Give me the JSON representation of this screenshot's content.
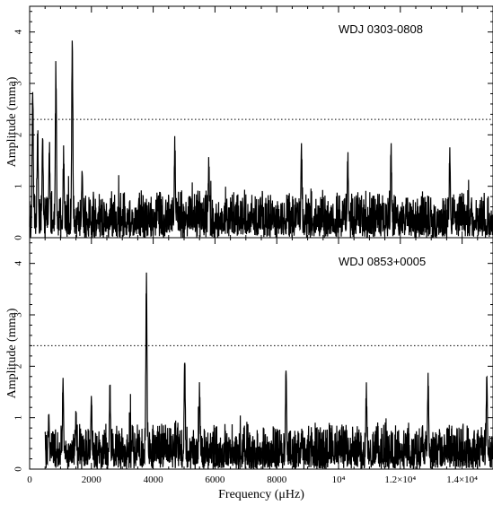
{
  "chart_data": [
    {
      "type": "line",
      "label": "WDJ 0303-0808",
      "xlabel": "Frequency (μHz)",
      "ylabel": "Amplitude (mma)",
      "xlim": [
        0,
        15000
      ],
      "ylim": [
        0,
        4.5
      ],
      "x_ticks": [
        0,
        2000,
        4000,
        6000,
        8000,
        10000,
        12000,
        14000
      ],
      "x_tick_labels": [
        "0",
        "2000",
        "4000",
        "6000",
        "8000",
        "10⁴",
        "1.2×10⁴",
        "1.4×10⁴"
      ],
      "y_ticks": [
        0,
        1,
        2,
        3,
        4
      ],
      "y_tick_labels": [
        "0",
        "1",
        "2",
        "3",
        "4"
      ],
      "threshold": 2.3,
      "x_range_data": [
        0,
        15000
      ],
      "series": [
        {
          "peaks": [
            {
              "x": 100,
              "y": 3.05
            },
            {
              "x": 260,
              "y": 2.2
            },
            {
              "x": 420,
              "y": 2.1
            },
            {
              "x": 640,
              "y": 1.9
            },
            {
              "x": 850,
              "y": 3.5
            },
            {
              "x": 1100,
              "y": 1.8
            },
            {
              "x": 1380,
              "y": 4.05
            },
            {
              "x": 1700,
              "y": 1.4
            },
            {
              "x": 4700,
              "y": 2.0
            },
            {
              "x": 5800,
              "y": 1.6
            },
            {
              "x": 8800,
              "y": 1.9
            },
            {
              "x": 10300,
              "y": 1.7
            },
            {
              "x": 11700,
              "y": 1.9
            },
            {
              "x": 13600,
              "y": 1.8
            }
          ],
          "noise_level": 0.55
        }
      ]
    },
    {
      "type": "line",
      "label": "WDJ 0853+0005",
      "xlabel": "Frequency (μHz)",
      "ylabel": "Amplitude (mma)",
      "xlim": [
        0,
        15000
      ],
      "ylim": [
        0,
        4.5
      ],
      "x_ticks": [
        0,
        2000,
        4000,
        6000,
        8000,
        10000,
        12000,
        14000
      ],
      "x_tick_labels": [
        "0",
        "2000",
        "4000",
        "6000",
        "8000",
        "10⁴",
        "1.2×10⁴",
        "1.4×10⁴"
      ],
      "y_ticks": [
        0,
        1,
        2,
        3,
        4
      ],
      "y_tick_labels": [
        "0",
        "1",
        "2",
        "3",
        "4"
      ],
      "threshold": 2.4,
      "x_range_data": [
        500,
        15000
      ],
      "series": [
        {
          "peaks": [
            {
              "x": 620,
              "y": 1.15
            },
            {
              "x": 1080,
              "y": 1.85
            },
            {
              "x": 1500,
              "y": 1.2
            },
            {
              "x": 2000,
              "y": 1.5
            },
            {
              "x": 2600,
              "y": 1.75
            },
            {
              "x": 3780,
              "y": 4.0
            },
            {
              "x": 5020,
              "y": 2.3
            },
            {
              "x": 5500,
              "y": 1.7
            },
            {
              "x": 8300,
              "y": 2.1
            },
            {
              "x": 10900,
              "y": 1.7
            },
            {
              "x": 12900,
              "y": 1.9
            },
            {
              "x": 14800,
              "y": 1.95
            }
          ],
          "noise_level": 0.55
        }
      ]
    }
  ]
}
